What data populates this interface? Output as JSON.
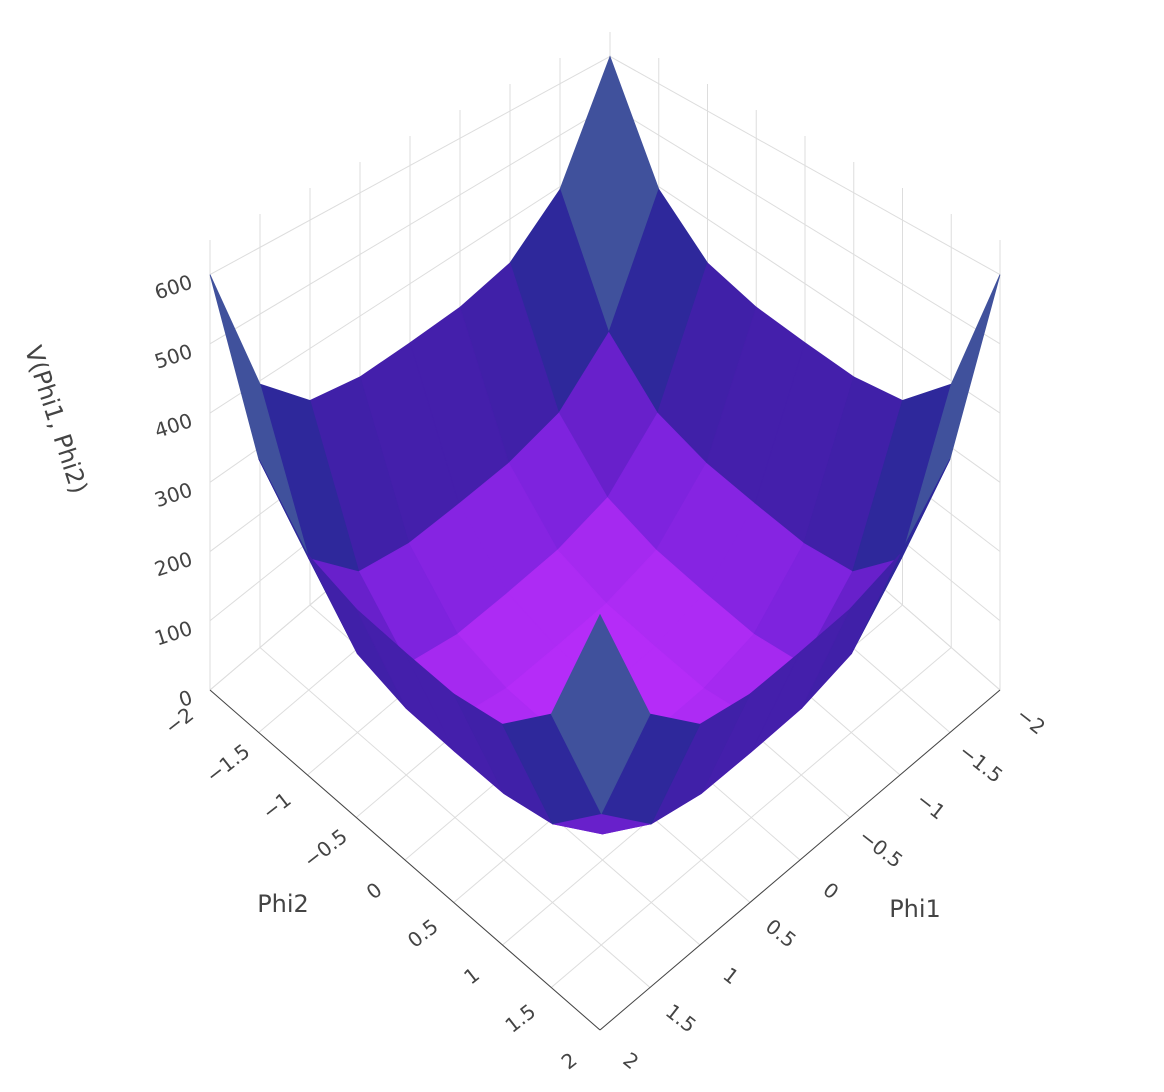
{
  "chart_data": {
    "type": "surface",
    "x_title": "Phi1",
    "y_title": "Phi2",
    "z_title": "V(Phi1, Phi2)",
    "x": [
      -2,
      -1.5,
      -1,
      -0.5,
      0,
      0.5,
      1,
      1.5,
      2
    ],
    "y": [
      -2,
      -1.5,
      -1,
      -0.5,
      0,
      0.5,
      1,
      1.5,
      2
    ],
    "z": [
      [
        600,
        394.92,
        318.75,
        301.17,
        300,
        301.17,
        318.75,
        394.92,
        600
      ],
      [
        394.92,
        189.84,
        113.67,
        96.09,
        94.92,
        96.09,
        113.67,
        189.84,
        394.92
      ],
      [
        318.75,
        113.67,
        37.5,
        19.92,
        18.75,
        19.92,
        37.5,
        113.67,
        318.75
      ],
      [
        301.17,
        96.09,
        19.92,
        2.34,
        1.17,
        2.34,
        19.92,
        96.09,
        301.17
      ],
      [
        300,
        94.92,
        18.75,
        1.17,
        0,
        1.17,
        18.75,
        94.92,
        300
      ],
      [
        301.17,
        96.09,
        19.92,
        2.34,
        1.17,
        2.34,
        19.92,
        96.09,
        301.17
      ],
      [
        318.75,
        113.67,
        37.5,
        19.92,
        18.75,
        19.92,
        37.5,
        113.67,
        318.75
      ],
      [
        394.92,
        189.84,
        113.67,
        96.09,
        94.92,
        96.09,
        113.67,
        189.84,
        394.92
      ],
      [
        600,
        394.92,
        318.75,
        301.17,
        300,
        301.17,
        318.75,
        394.92,
        600
      ]
    ],
    "xlim": [
      -2,
      2
    ],
    "ylim": [
      -2,
      2
    ],
    "zlim": [
      0,
      650
    ],
    "xticks": [
      {
        "value": -2,
        "label": "−2"
      },
      {
        "value": -1.5,
        "label": "−1.5"
      },
      {
        "value": -1,
        "label": "−1"
      },
      {
        "value": -0.5,
        "label": "−0.5"
      },
      0,
      0.5,
      1,
      1.5,
      2
    ],
    "yticks": [
      {
        "value": -2,
        "label": "−2"
      },
      {
        "value": -1.5,
        "label": "−1.5"
      },
      {
        "value": -1,
        "label": "−1"
      },
      {
        "value": -0.5,
        "label": "−0.5"
      },
      0,
      0.5,
      1,
      1.5,
      2
    ],
    "zticks": [
      0,
      100,
      200,
      300,
      400,
      500,
      600
    ],
    "colorscale": [
      [
        0,
        "#b62cf8"
      ],
      [
        0.12,
        "#7a22dc"
      ],
      [
        0.3,
        "#4b1cb0"
      ],
      [
        0.5,
        "#1c2f8e"
      ],
      [
        0.7,
        "#4a5aa0"
      ],
      [
        1,
        "#d6a8b2"
      ]
    ],
    "cmin": 0,
    "cmax": 600,
    "grid": true
  }
}
